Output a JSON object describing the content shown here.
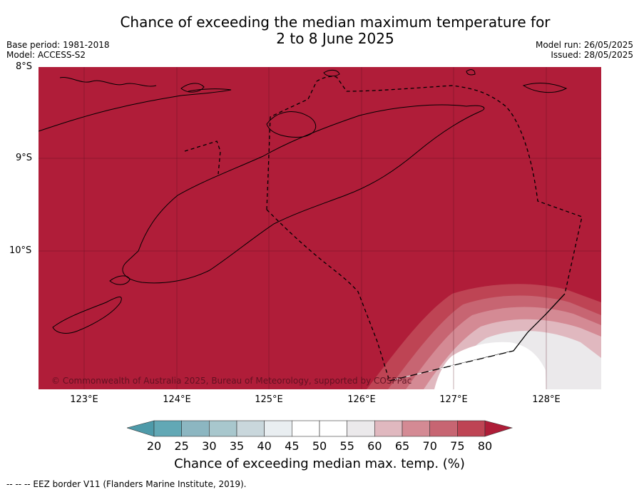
{
  "title_line1": "Chance of exceeding the median maximum temperature for",
  "title_line2": "2 to 8 June 2025",
  "base_period": "Base period: 1981-2018",
  "model": "Model: ACCESS-S2",
  "model_run": "Model run: 26/05/2025",
  "issued": "Issued: 28/05/2025",
  "copyright": "© Commonwealth of Australia 2025, Bureau of Meteorology, supported by COSPPac",
  "lat_labels": [
    "8°S",
    "9°S",
    "10°S"
  ],
  "lon_labels": [
    "123°E",
    "124°E",
    "125°E",
    "126°E",
    "127°E",
    "128°E"
  ],
  "colorbar": {
    "title": "Chance of exceeding median max. temp. (%)",
    "ticks": [
      "20",
      "25",
      "30",
      "35",
      "40",
      "45",
      "50",
      "55",
      "60",
      "65",
      "70",
      "75",
      "80"
    ],
    "colors": [
      "#62a8b5",
      "#8cb6c1",
      "#a8c7cd",
      "#c9d7dc",
      "#e9eef1",
      "#ffffff",
      "#ffffff",
      "#ebe9eb",
      "#e0b8bf",
      "#d48a94",
      "#c76572",
      "#be4454"
    ],
    "under_color": "#4e9aa9",
    "over_color": "#ae1d38"
  },
  "footnote": "--  --  -- EEZ border V11 (Flanders Marine Institute, 2019).",
  "map_colors": {
    "background": "#b01d39",
    "band_75": "#be4454",
    "band_70": "#c76572",
    "band_65": "#d48a94",
    "band_60": "#e0b8bf",
    "band_55": "#ebe9eb",
    "band_50": "#ffffff"
  }
}
